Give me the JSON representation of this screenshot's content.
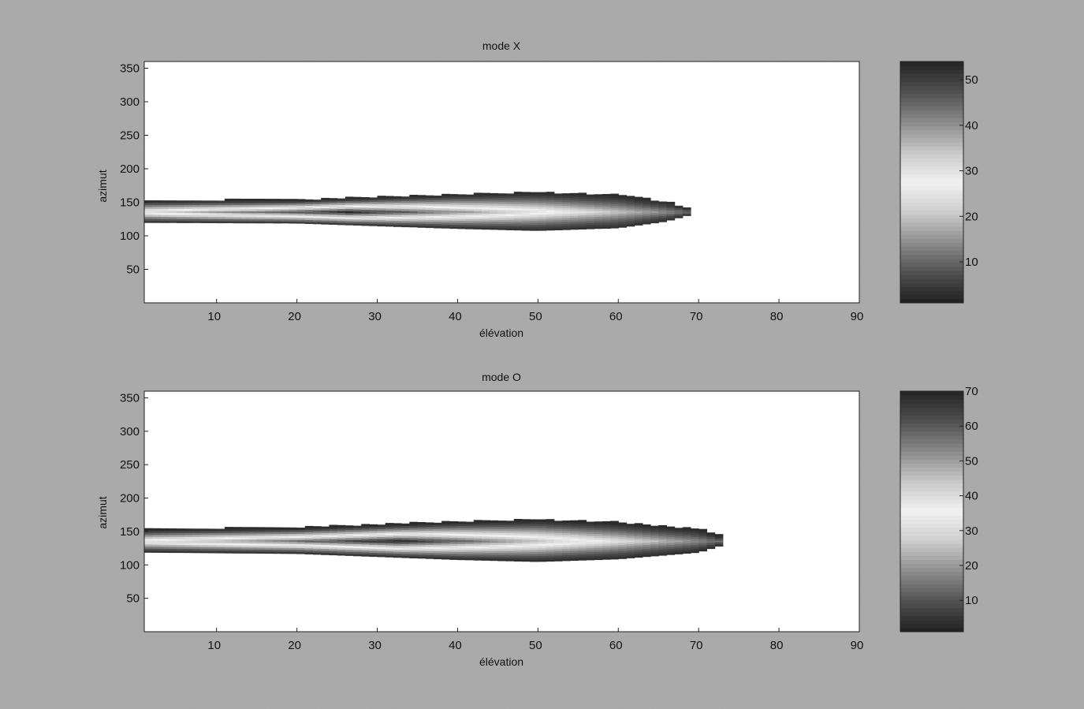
{
  "chart_data": [
    {
      "type": "heatmap",
      "title": "mode X",
      "xlabel": "élévation",
      "ylabel": "azimut",
      "xlim": [
        1,
        90
      ],
      "ylim": [
        0,
        360
      ],
      "x_ticks": [
        10,
        20,
        30,
        40,
        50,
        60,
        70,
        80,
        90
      ],
      "y_ticks": [
        50,
        100,
        150,
        200,
        250,
        300,
        350
      ],
      "colorbar": {
        "min": 1,
        "max": 54,
        "ticks": [
          10,
          20,
          30,
          40,
          50
        ]
      },
      "colormap": [
        "#202020",
        "#505050",
        "#8c8c8c",
        "#cccccc",
        "#f2f2f2",
        "#c8c8c8",
        "#8a8a8a",
        "#505050",
        "#242424"
      ],
      "background_color": "#ffffff",
      "lobe": {
        "x_start": 1,
        "x_end": 69,
        "azimuth_center": 136,
        "peak_elevation": 26,
        "peak_value": 54,
        "floor_value": 3,
        "width_profile": [
          {
            "x": 1,
            "half_width": 16
          },
          {
            "x": 20,
            "half_width": 17
          },
          {
            "x": 40,
            "half_width": 25
          },
          {
            "x": 50,
            "half_width": 28
          },
          {
            "x": 60,
            "half_width": 24
          },
          {
            "x": 66,
            "half_width": 14
          },
          {
            "x": 69,
            "half_width": 4
          }
        ]
      }
    },
    {
      "type": "heatmap",
      "title": "mode O",
      "xlabel": "élévation",
      "ylabel": "azimut",
      "xlim": [
        1,
        90
      ],
      "ylim": [
        0,
        360
      ],
      "x_ticks": [
        10,
        20,
        30,
        40,
        50,
        60,
        70,
        80,
        90
      ],
      "y_ticks": [
        50,
        100,
        150,
        200,
        250,
        300,
        350
      ],
      "colorbar": {
        "min": 1,
        "max": 70,
        "ticks": [
          10,
          20,
          30,
          40,
          50,
          60,
          70
        ]
      },
      "colormap": [
        "#202020",
        "#505050",
        "#8c8c8c",
        "#cccccc",
        "#f2f2f2",
        "#c8c8c8",
        "#8a8a8a",
        "#505050",
        "#242424"
      ],
      "background_color": "#ffffff",
      "lobe": {
        "x_start": 1,
        "x_end": 73,
        "azimuth_center": 136,
        "peak_elevation": 32,
        "peak_value": 70,
        "floor_value": 3,
        "width_profile": [
          {
            "x": 1,
            "half_width": 17
          },
          {
            "x": 20,
            "half_width": 19
          },
          {
            "x": 40,
            "half_width": 28
          },
          {
            "x": 50,
            "half_width": 31
          },
          {
            "x": 60,
            "half_width": 27
          },
          {
            "x": 70,
            "half_width": 17
          },
          {
            "x": 73,
            "half_width": 6
          }
        ]
      }
    }
  ]
}
